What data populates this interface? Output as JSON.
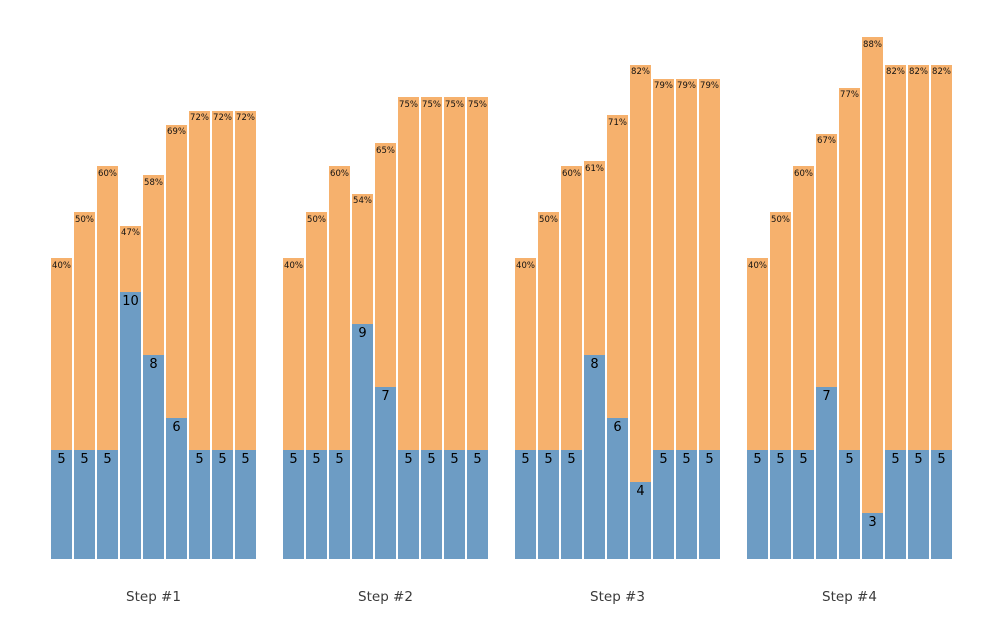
{
  "figure": {
    "colors": {
      "pulls_bar": "#6d9cc4",
      "rate_bar": "#f6b16d",
      "rate_label_text": "#111111",
      "pulls_label_text": "#000000",
      "step_label_text": "#3a3a3a",
      "background": "#ffffff"
    },
    "percent_suffix": "%"
  },
  "chart_data": {
    "type": "bar",
    "subtype": "grouped stacked-overlay bars, 4 panels of 9 bars",
    "legend_position": "none",
    "grid": false,
    "groups": [
      {
        "label": "Step #1",
        "counts": [
          5,
          5,
          5,
          10,
          8,
          6,
          5,
          5,
          5
        ],
        "percents": [
          40,
          50,
          60,
          47,
          58,
          69,
          72,
          72,
          72
        ]
      },
      {
        "label": "Step #2",
        "counts": [
          5,
          5,
          5,
          9,
          7,
          5,
          5,
          5,
          5
        ],
        "percents": [
          40,
          50,
          60,
          54,
          65,
          75,
          75,
          75,
          75
        ]
      },
      {
        "label": "Step #3",
        "counts": [
          5,
          5,
          5,
          8,
          6,
          4,
          5,
          5,
          5
        ],
        "percents": [
          40,
          50,
          60,
          61,
          71,
          82,
          79,
          79,
          79
        ]
      },
      {
        "label": "Step #4",
        "counts": [
          5,
          5,
          5,
          7,
          5,
          3,
          5,
          5,
          5
        ],
        "percents": [
          40,
          50,
          60,
          67,
          77,
          88,
          82,
          82,
          82
        ]
      }
    ]
  }
}
